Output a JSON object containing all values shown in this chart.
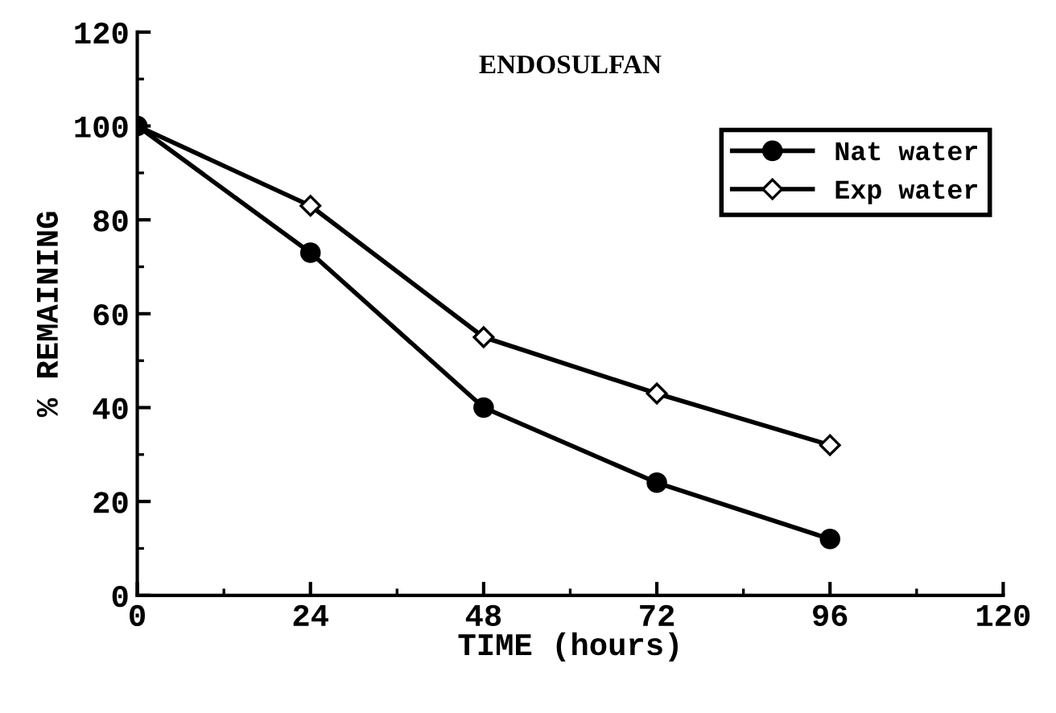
{
  "chart_data": {
    "type": "line",
    "title": "ENDOSULFAN",
    "xlabel": "TIME (hours)",
    "ylabel": "% REMAINING",
    "x": [
      0,
      24,
      48,
      72,
      96
    ],
    "series": [
      {
        "name": "Nat water",
        "color": "#000000",
        "marker": "circle",
        "values": [
          100,
          73,
          40,
          24,
          12
        ]
      },
      {
        "name": "Exp water",
        "color": "#000000",
        "marker": "diamond",
        "values": [
          100,
          83,
          55,
          43,
          32
        ]
      }
    ],
    "xlim": [
      0,
      120
    ],
    "xticks": [
      0,
      24,
      48,
      72,
      96,
      120
    ],
    "ylim": [
      0,
      120
    ],
    "yticks": [
      0,
      20,
      40,
      60,
      80,
      100,
      120
    ],
    "grid": false,
    "legend": "top right",
    "line_style": "solid"
  }
}
